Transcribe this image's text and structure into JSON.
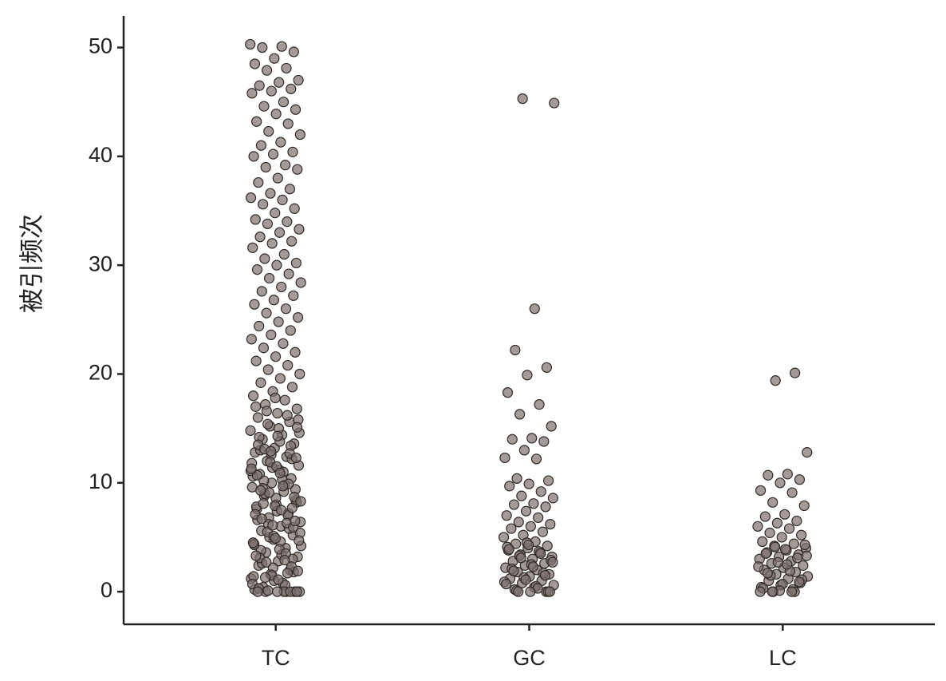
{
  "chart_data": {
    "type": "strip",
    "y_label": "被引频次",
    "categories": [
      "TC",
      "GC",
      "LC"
    ],
    "ylim": [
      -3,
      52.9
    ],
    "yticks": [
      0,
      10,
      20,
      30,
      40,
      50
    ],
    "point_color": "#7d716d",
    "point_stroke": "#2f2a27",
    "values": [
      [
        50.3,
        50.1,
        50.0,
        49.6,
        49.0,
        48.5,
        48.1,
        47.9,
        47.0,
        46.8,
        46.5,
        46.2,
        46.0,
        45.8,
        45.0,
        44.6,
        44.3,
        43.9,
        43.2,
        43.0,
        42.3,
        42.0,
        41.3,
        41.0,
        40.4,
        40.2,
        40.0,
        39.2,
        39.0,
        38.8,
        38.0,
        37.6,
        37.0,
        36.6,
        36.2,
        36.0,
        35.6,
        35.2,
        34.8,
        34.2,
        34.0,
        33.8,
        33.3,
        33.0,
        32.6,
        32.2,
        32.0,
        31.6,
        31.0,
        30.6,
        30.2,
        30.0,
        29.6,
        29.2,
        28.8,
        28.4,
        28.0,
        27.6,
        27.2,
        26.8,
        26.4,
        26.0,
        25.6,
        25.2,
        24.8,
        24.4,
        24.0,
        23.6,
        23.2,
        22.8,
        22.4,
        22.0,
        21.6,
        21.2,
        20.8,
        20.4,
        20.0,
        19.6,
        19.2,
        18.8,
        18.4,
        18.0,
        17.6,
        17.2,
        16.8,
        16.4,
        16.0,
        15.6,
        15.2,
        14.8,
        14.4,
        14.0,
        13.6,
        13.2,
        12.8,
        12.4,
        12.0,
        11.6,
        11.2,
        10.8,
        10.4,
        10.0,
        9.6,
        9.2,
        8.8,
        8.4,
        8.0,
        7.6,
        7.2,
        6.8,
        6.4,
        6.0,
        5.6,
        5.2,
        4.8,
        4.4,
        4.0,
        3.6,
        3.2,
        2.8,
        2.4,
        2.0,
        1.6,
        1.2,
        0.8,
        0.4,
        0,
        17.8,
        17.0,
        16.2,
        15.4,
        14.6,
        13.8,
        13.0,
        12.2,
        11.4,
        10.6,
        9.8,
        9.0,
        8.2,
        7.4,
        6.6,
        5.8,
        5.0,
        4.2,
        3.4,
        2.6,
        1.8,
        1.0,
        0.2,
        0,
        16.6,
        15.8,
        15.0,
        14.2,
        13.4,
        12.6,
        11.8,
        11.0,
        10.2,
        9.4,
        8.6,
        7.8,
        7.0,
        6.2,
        5.4,
        4.6,
        3.8,
        3.0,
        2.2,
        1.4,
        0.6,
        0,
        15.1,
        14.3,
        13.5,
        12.7,
        11.9,
        11.1,
        10.3,
        9.5,
        8.7,
        7.9,
        7.1,
        6.3,
        5.5,
        4.7,
        3.9,
        3.1,
        2.3,
        1.5,
        0.7,
        0,
        13.1,
        12.3,
        11.5,
        10.7,
        9.9,
        9.1,
        8.3,
        7.5,
        6.7,
        5.9,
        5.1,
        4.3,
        3.5,
        2.7,
        1.9,
        1.1,
        0.3,
        0,
        12.9,
        11.3,
        9.7,
        8.1,
        6.5,
        4.9,
        3.3,
        1.7,
        0.1,
        0,
        10.9,
        9.3,
        7.7,
        6.1,
        4.5,
        2.9,
        1.3,
        0,
        0,
        0
      ],
      [
        45.3,
        44.9,
        26.0,
        22.2,
        20.6,
        19.9,
        18.3,
        17.2,
        16.3,
        15.2,
        14.1,
        14.0,
        13.8,
        13.0,
        12.3,
        12.2,
        10.4,
        10.2,
        9.9,
        9.7,
        9.2,
        8.8,
        8.6,
        8.1,
        8.0,
        7.8,
        7.4,
        7.0,
        6.8,
        6.4,
        6.2,
        6.0,
        5.8,
        5.5,
        5.2,
        5.0,
        4.6,
        4.4,
        4.2,
        4.0,
        3.8,
        3.6,
        3.4,
        3.2,
        3.0,
        2.8,
        2.6,
        2.4,
        2.2,
        2.0,
        1.8,
        1.6,
        1.4,
        1.2,
        1.0,
        0.8,
        0.6,
        0.4,
        0.2,
        0,
        4.5,
        4.1,
        3.7,
        3.3,
        2.9,
        2.5,
        2.1,
        1.7,
        1.3,
        0.9,
        0.5,
        0.1,
        0,
        4.3,
        3.9,
        3.5,
        3.1,
        2.7,
        2.3,
        1.9,
        1.5,
        1.1,
        0.7,
        0.3,
        0,
        0,
        0
      ],
      [
        20.1,
        19.4,
        12.8,
        10.8,
        10.7,
        10.3,
        10.0,
        9.3,
        9.1,
        8.2,
        7.9,
        7.1,
        6.9,
        6.5,
        6.3,
        6.0,
        5.8,
        5.4,
        5.2,
        5.0,
        4.6,
        4.4,
        4.2,
        4.0,
        3.8,
        3.6,
        3.4,
        3.2,
        3.0,
        2.8,
        2.6,
        2.4,
        2.2,
        2.0,
        1.8,
        1.6,
        1.4,
        1.2,
        1.0,
        0.8,
        0.6,
        0.4,
        0.2,
        0,
        4.3,
        3.9,
        3.5,
        3.1,
        2.7,
        2.3,
        1.9,
        1.5,
        1.1,
        0.7,
        0.3,
        0,
        4.1,
        3.3,
        2.5,
        1.7,
        0.9,
        0.1,
        0,
        0,
        0
      ]
    ]
  }
}
